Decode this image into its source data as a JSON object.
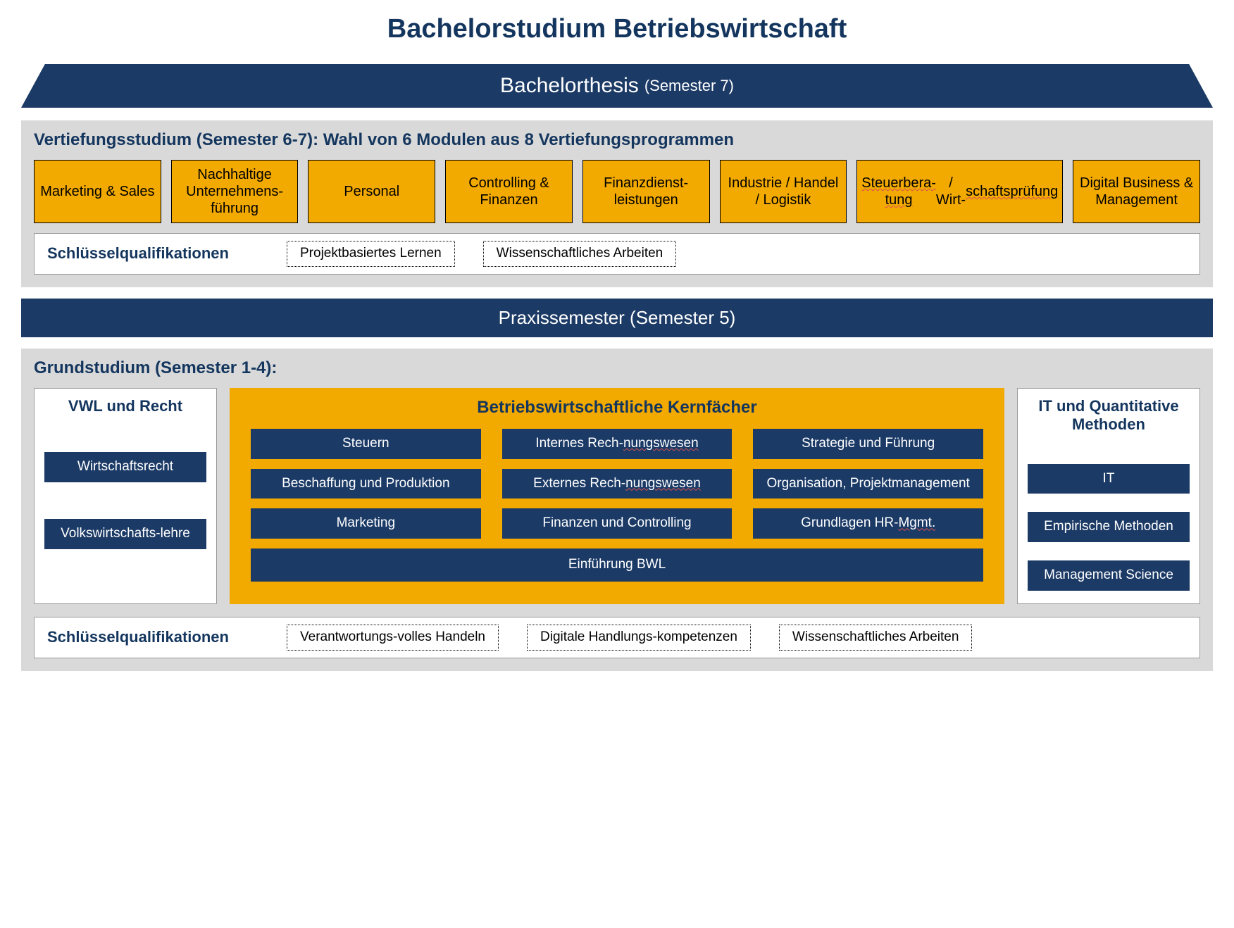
{
  "colors": {
    "navy": "#1b3a66",
    "navy_text": "#14365e",
    "yellow": "#f2a900",
    "grey": "#d9d9d9",
    "white": "#ffffff",
    "black": "#000000"
  },
  "title": {
    "text": "Bachelorstudium Betriebswirtschaft",
    "fontsize": 38
  },
  "thesis": {
    "main": "Bachelorthesis",
    "sub": "(Semester 7)"
  },
  "vertiefung": {
    "header": "Vertiefungsstudium (Semester 6-7): Wahl von 6 Modulen aus 8 Vertiefungsprogrammen",
    "modules": [
      {
        "text": "Marketing & Sales"
      },
      {
        "text": "Nachhaltige Unternehmens-führung"
      },
      {
        "text": "Personal"
      },
      {
        "text": "Controlling & Finanzen"
      },
      {
        "text": "Finanzdienst-leistungen"
      },
      {
        "text": "Industrie / Handel / Logistik"
      },
      {
        "html": "<span class='underline-red'>Steuerbera-tung</span> / Wirt-<span class='underline-red'>schaftsprüfung</span>"
      },
      {
        "text": "Digital Business & Management"
      }
    ],
    "key_label": "Schlüsselqualifikationen",
    "key_items": [
      "Projektbasiertes Lernen",
      "Wissenschaftliches Arbeiten"
    ]
  },
  "praxis": {
    "text": "Praxissemester (Semester 5)"
  },
  "grund": {
    "header": "Grundstudium (Semester 1-4):",
    "left": {
      "title": "VWL und Recht",
      "items": [
        "Wirtschaftsrecht",
        "Volkswirtschafts-lehre"
      ]
    },
    "center": {
      "title": "Betriebswirtschaftliche Kernfächer",
      "grid": [
        {
          "text": "Steuern"
        },
        {
          "html": "Internes Rech-<span class='underline-red'>nungswesen</span>"
        },
        {
          "text": "Strategie und Führung"
        },
        {
          "text": "Beschaffung und Produktion"
        },
        {
          "html": "Externes Rech-<span class='underline-red'>nungswesen</span>"
        },
        {
          "text": "Organisation, Projektmanagement"
        },
        {
          "text": "Marketing"
        },
        {
          "text": "Finanzen und Controlling"
        },
        {
          "html": "Grundlagen HR-<span class='underline-red'>Mgmt.</span>"
        }
      ],
      "full": "Einführung BWL"
    },
    "right": {
      "title": "IT und Quantitative Methoden",
      "items": [
        "IT",
        "Empirische Methoden",
        "Management Science"
      ]
    },
    "key_label": "Schlüsselqualifikationen",
    "key_items": [
      "Verantwortungs-volles Handeln",
      "Digitale Handlungs-kompetenzen",
      "Wissenschaftliches Arbeiten"
    ]
  }
}
